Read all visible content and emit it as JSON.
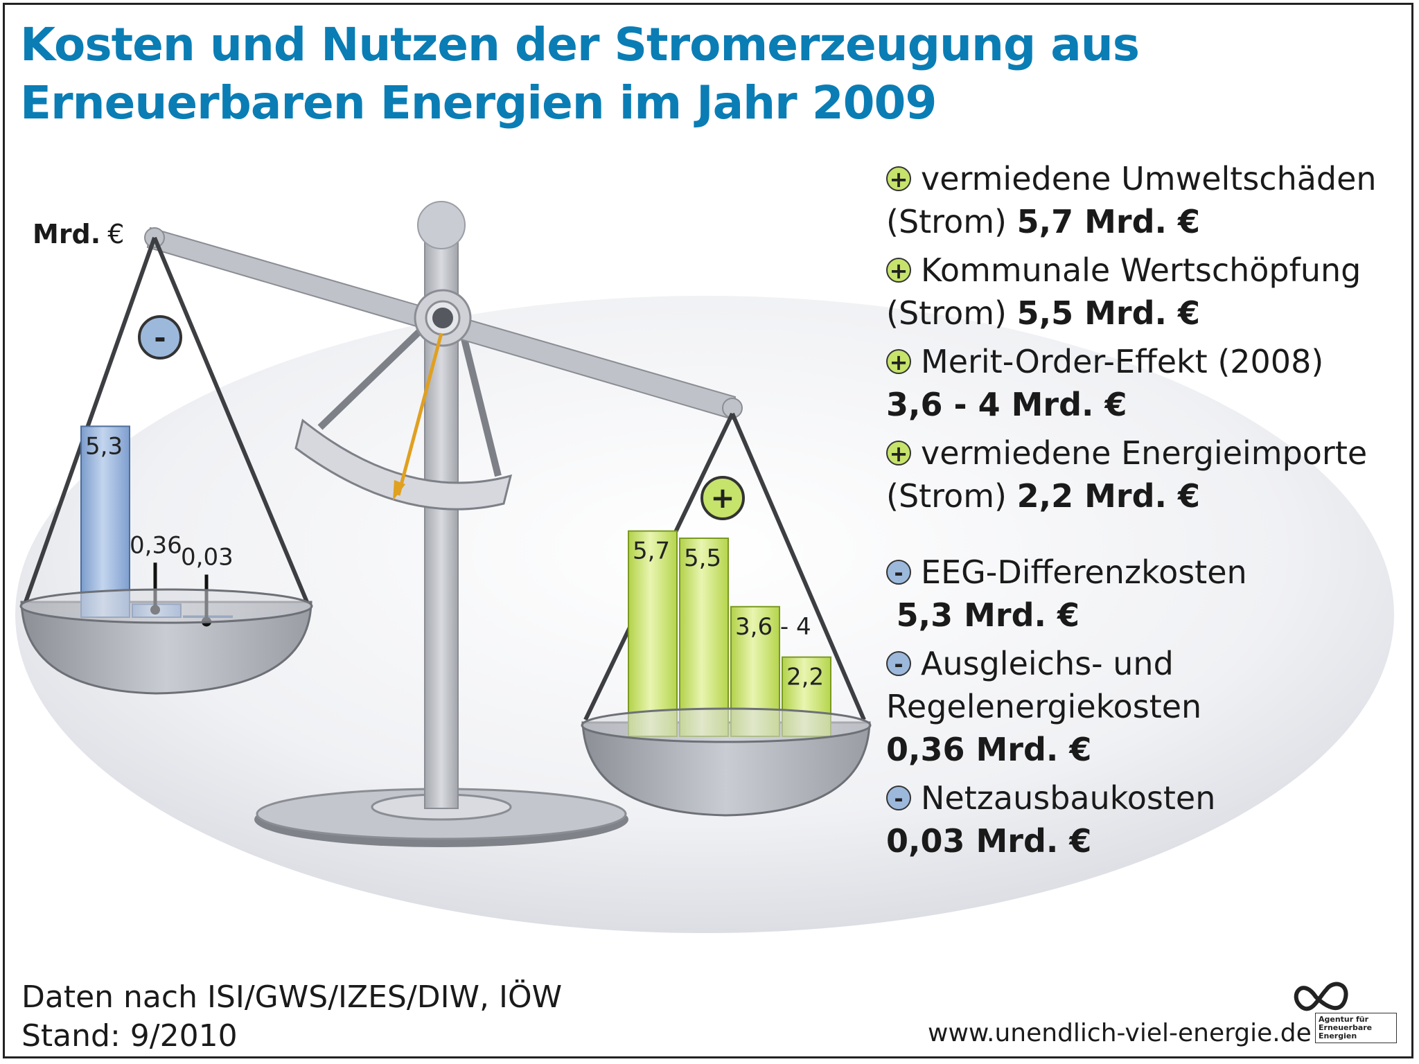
{
  "title_line1": "Kosten und Nutzen der Stromerzeugung aus",
  "title_line2": "Erneuerbaren Energien im Jahr 2009",
  "axis_unit_bold": "Mrd.",
  "axis_unit_symbol": "€",
  "plus_symbol": "+",
  "minus_symbol": "-",
  "legend": {
    "benefits": [
      {
        "text": "vermiedene Umweltschäden",
        "prefix": "(Strom)",
        "amount": "5,7 Mrd. €"
      },
      {
        "text": "Kommunale Wertschöpfung",
        "prefix": "(Strom)",
        "amount": "5,5 Mrd. €"
      },
      {
        "text": "Merit-Order-Effekt (2008)",
        "prefix": "",
        "amount": "3,6 - 4 Mrd. €"
      },
      {
        "text": "vermiedene Energieimporte",
        "prefix": "(Strom)",
        "amount": "2,2 Mrd. €"
      }
    ],
    "costs": [
      {
        "text": "EEG-Differenzkosten",
        "line2": "",
        "amount": "5,3 Mrd. €"
      },
      {
        "text": "Ausgleichs- und",
        "line2": "Regelenergiekosten",
        "amount": "0,36 Mrd. €"
      },
      {
        "text": "Netzausbaukosten",
        "line2": "",
        "amount": "0,03 Mrd. €"
      }
    ]
  },
  "source_line1": "Daten nach ISI/GWS/IZES/DIW, IÖW",
  "source_line2": "Stand: 9/2010",
  "url": "www.unendlich-viel-energie.de",
  "logo_text": "Agentur für Erneuerbare Energien",
  "colors": {
    "title": "#0a7db5",
    "cost_bar": "#8fb0d8",
    "benefit_bar": "#c6e36b",
    "needle": "#e0a020",
    "scale": "#b9bcc2"
  },
  "chart_data": [
    {
      "type": "bar",
      "name": "Kosten",
      "categories": [
        "EEG-Differenzkosten",
        "Ausgleichs- und Regelenergiekosten",
        "Netzausbaukosten"
      ],
      "values": [
        5.3,
        0.36,
        0.03
      ],
      "labels": [
        "5,3",
        "0,36",
        "0,03"
      ],
      "unit": "Mrd. €"
    },
    {
      "type": "bar",
      "name": "Nutzen",
      "categories": [
        "vermiedene Umweltschäden",
        "Kommunale Wertschöpfung",
        "Merit-Order-Effekt (2008)",
        "vermiedene Energieimporte"
      ],
      "values": [
        5.7,
        5.5,
        3.6,
        2.2
      ],
      "labels": [
        "5,7",
        "5,5",
        "3,6 - 4",
        "2,2"
      ],
      "unit": "Mrd. €"
    }
  ]
}
